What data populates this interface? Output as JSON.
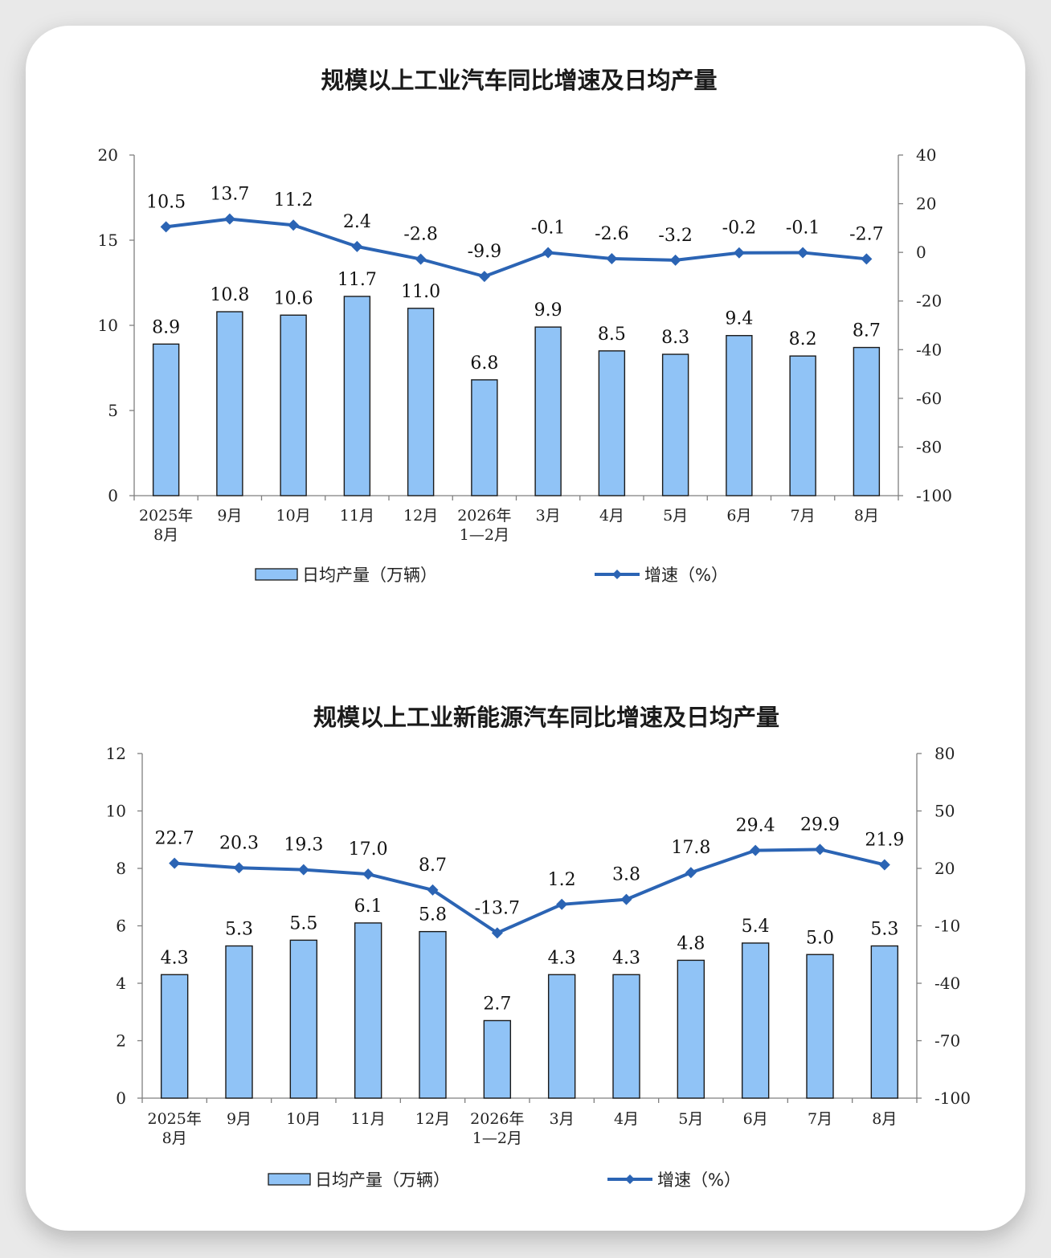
{
  "colors": {
    "bar_fill": "#90c3f6",
    "bar_stroke": "#1a1a1a",
    "line": "#2b64b4",
    "axis": "#7f7f7f"
  },
  "chart_data": [
    {
      "type": "bar+line",
      "title": "规模以上工业汽车同比增速及日均产量",
      "categories": [
        [
          "2025年",
          "8月"
        ],
        [
          "9月"
        ],
        [
          "10月"
        ],
        [
          "11月"
        ],
        [
          "12月"
        ],
        [
          "2026年",
          "1—2月"
        ],
        [
          "3月"
        ],
        [
          "4月"
        ],
        [
          "5月"
        ],
        [
          "6月"
        ],
        [
          "7月"
        ],
        [
          "8月"
        ]
      ],
      "left_axis": {
        "ylim": [
          0,
          20
        ],
        "ticks": [
          "0",
          "5",
          "10",
          "15",
          "20"
        ]
      },
      "right_axis": {
        "ylim": [
          -100,
          40
        ],
        "ticks": [
          "-100",
          "-80",
          "-60",
          "-40",
          "-20",
          "0",
          "20",
          "40"
        ]
      },
      "series": [
        {
          "name": "日均产量（万辆）",
          "type": "bar",
          "axis": "left",
          "values": [
            8.9,
            10.8,
            10.6,
            11.7,
            11.0,
            6.8,
            9.9,
            8.5,
            8.3,
            9.4,
            8.2,
            8.7
          ],
          "labels": [
            "8.9",
            "10.8",
            "10.6",
            "11.7",
            "11.0",
            "6.8",
            "9.9",
            "8.5",
            "8.3",
            "9.4",
            "8.2",
            "8.7"
          ]
        },
        {
          "name": "增速（%）",
          "type": "line",
          "axis": "right",
          "values": [
            10.5,
            13.7,
            11.2,
            2.4,
            -2.8,
            -9.9,
            -0.1,
            -2.6,
            -3.2,
            -0.2,
            -0.1,
            -2.7
          ],
          "labels": [
            "10.5",
            "13.7",
            "11.2",
            "2.4",
            "-2.8",
            "-9.9",
            "-0.1",
            "-2.6",
            "-3.2",
            "-0.2",
            "-0.1",
            "-2.7"
          ]
        }
      ],
      "legend_position": "bottom"
    },
    {
      "type": "bar+line",
      "title": "规模以上工业新能源汽车同比增速及日均产量",
      "categories": [
        [
          "2025年",
          "8月"
        ],
        [
          "9月"
        ],
        [
          "10月"
        ],
        [
          "11月"
        ],
        [
          "12月"
        ],
        [
          "2026年",
          "1—2月"
        ],
        [
          "3月"
        ],
        [
          "4月"
        ],
        [
          "5月"
        ],
        [
          "6月"
        ],
        [
          "7月"
        ],
        [
          "8月"
        ]
      ],
      "left_axis": {
        "ylim": [
          0,
          12
        ],
        "ticks": [
          "0",
          "2",
          "4",
          "6",
          "8",
          "10",
          "12"
        ]
      },
      "right_axis": {
        "ylim": [
          -100,
          80
        ],
        "ticks": [
          "-100",
          "-70",
          "-40",
          "-10",
          "20",
          "50",
          "80"
        ]
      },
      "series": [
        {
          "name": "日均产量（万辆）",
          "type": "bar",
          "axis": "left",
          "values": [
            4.3,
            5.3,
            5.5,
            6.1,
            5.8,
            2.7,
            4.3,
            4.3,
            4.8,
            5.4,
            5.0,
            5.3
          ],
          "labels": [
            "4.3",
            "5.3",
            "5.5",
            "6.1",
            "5.8",
            "2.7",
            "4.3",
            "4.3",
            "4.8",
            "5.4",
            "5.0",
            "5.3"
          ]
        },
        {
          "name": "增速（%）",
          "type": "line",
          "axis": "right",
          "values": [
            22.7,
            20.3,
            19.3,
            17.0,
            8.7,
            -13.7,
            1.2,
            3.8,
            17.8,
            29.4,
            29.9,
            21.9
          ],
          "labels": [
            "22.7",
            "20.3",
            "19.3",
            "17.0",
            "8.7",
            "-13.7",
            "1.2",
            "3.8",
            "17.8",
            "29.4",
            "29.9",
            "21.9"
          ]
        }
      ],
      "legend_position": "bottom"
    }
  ]
}
